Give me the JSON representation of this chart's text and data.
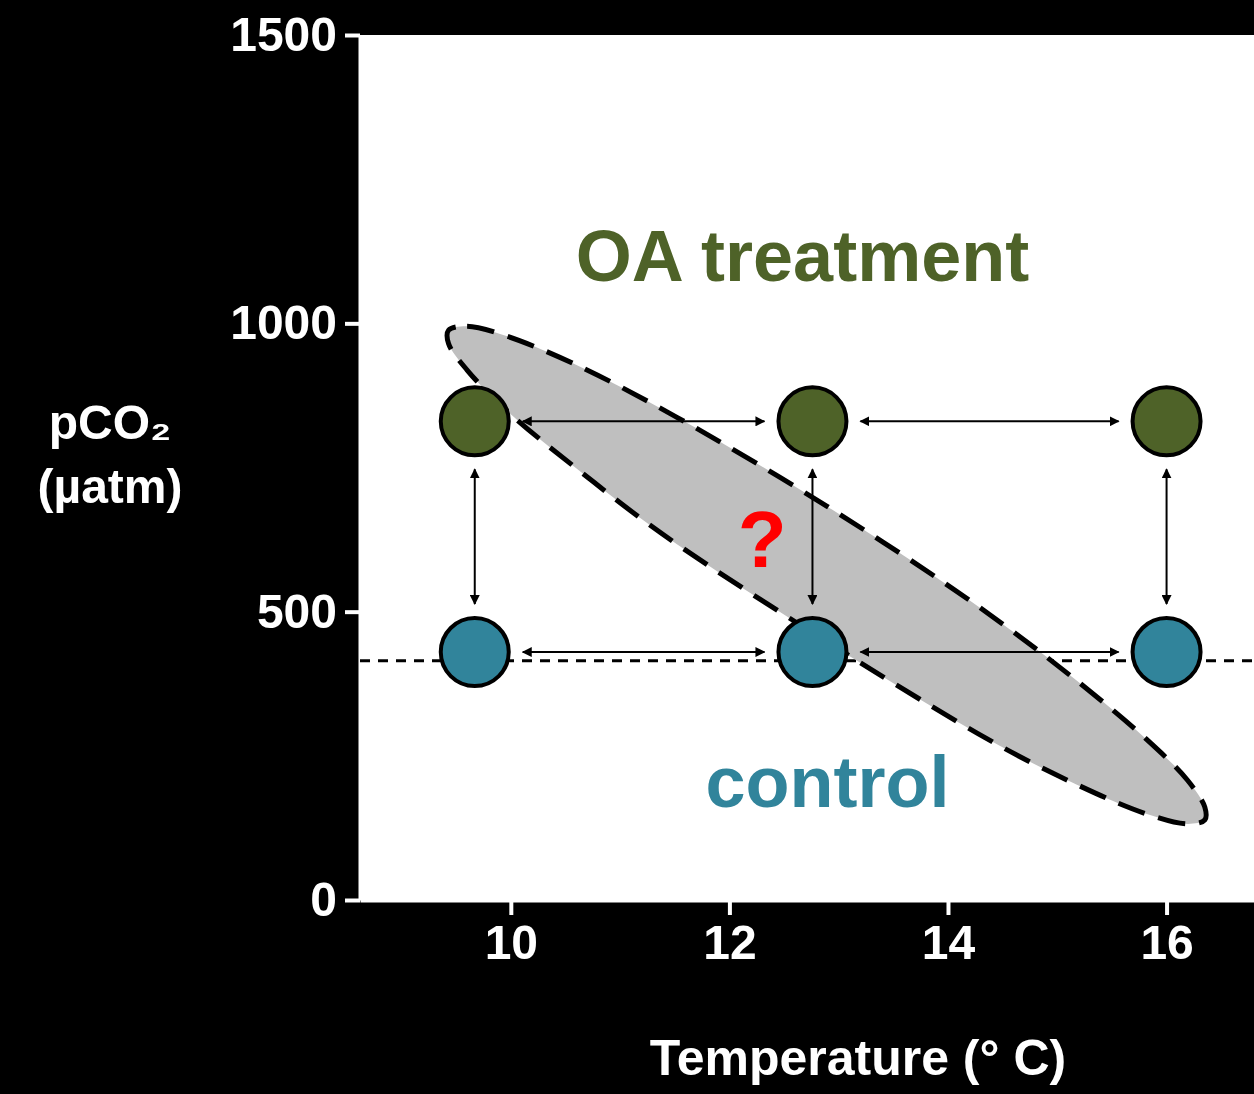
{
  "chart_data": {
    "type": "scatter",
    "xlabel": "Temperature (° C)",
    "ylabel": "pCO₂ (µatm)",
    "x": [
      9.67,
      12.76,
      16.0
    ],
    "xlim": [
      8.62,
      16.8
    ],
    "xticks": [
      10,
      12,
      14,
      16
    ],
    "ylim": [
      0,
      1500
    ],
    "yticks": [
      0,
      500,
      1000,
      1500
    ],
    "series": [
      {
        "type": "area",
        "color": "#bfbfbf",
        "line_style": "dashed",
        "marker": "none",
        "x": [
          9.43,
          9.6,
          9.96,
          10.61,
          11.52,
          12.89,
          14.27,
          15.18,
          15.82,
          16.19,
          16.35,
          16.35,
          16.19,
          15.82,
          15.18,
          14.27,
          12.89,
          11.52,
          10.61,
          9.96,
          9.6,
          9.43
        ],
        "values": [
          988,
          995,
          978,
          927,
          837,
          683,
          510,
          380,
          278,
          208,
          161,
          139,
          132,
          149,
          200,
          289,
          null,
          617,
          747,
          849,
          919,
          965
        ]
      },
      {
        "name": "OA treatment",
        "color": "#4e6228",
        "values": [
          830,
          830,
          830
        ]
      },
      {
        "name": "control",
        "color": "#31849b",
        "values": [
          430,
          430,
          430
        ]
      }
    ],
    "ref_lines": [
      {
        "axis": "y",
        "value": 415,
        "line_style": "dashed",
        "color": "#000000"
      }
    ],
    "annotations": [
      "?"
    ],
    "marker": "circle",
    "legend": false
  }
}
